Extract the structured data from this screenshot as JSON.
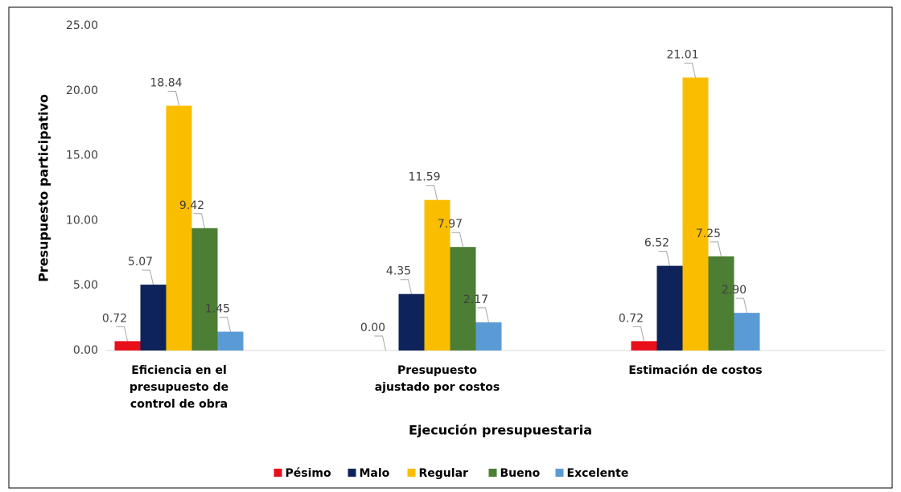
{
  "chart_data": {
    "type": "bar",
    "categories": [
      "Eficiencia en el presupuesto de control de obra",
      "Presupuesto ajustado por costos",
      "Estimación de costos"
    ],
    "series": [
      {
        "name": "Pésimo",
        "color": "#e8101a",
        "values": [
          0.72,
          0.0,
          0.72
        ],
        "value_labels": [
          "0.72",
          "0.00",
          "0.72"
        ]
      },
      {
        "name": "Malo",
        "color": "#0e2359",
        "values": [
          5.07,
          4.35,
          6.52
        ],
        "value_labels": [
          "5.07",
          "4.35",
          "6.52"
        ]
      },
      {
        "name": "Regular",
        "color": "#fbbd00",
        "values": [
          18.84,
          11.59,
          21.01
        ],
        "value_labels": [
          "18.84",
          "11.59",
          "21.01"
        ]
      },
      {
        "name": "Bueno",
        "color": "#4c7e34",
        "values": [
          9.42,
          7.97,
          7.25
        ],
        "value_labels": [
          "9.42",
          "7.97",
          "7.25"
        ]
      },
      {
        "name": "Excelente",
        "color": "#5b9bd5",
        "values": [
          1.45,
          2.17,
          2.9
        ],
        "value_labels": [
          "1.45",
          "2.17",
          "2.90"
        ]
      }
    ],
    "ylim": [
      0,
      25
    ],
    "yticks": [
      {
        "value": 0,
        "label": "0.00"
      },
      {
        "value": 5,
        "label": "5.00"
      },
      {
        "value": 10,
        "label": "10.00"
      },
      {
        "value": 15,
        "label": "15.00"
      },
      {
        "value": 20,
        "label": "20.00"
      },
      {
        "value": 25,
        "label": "25.00"
      }
    ],
    "y_label": "Presupuesto participativo",
    "x_label": "Ejecución presupuestaria",
    "legend": "bottom",
    "grid": false
  }
}
